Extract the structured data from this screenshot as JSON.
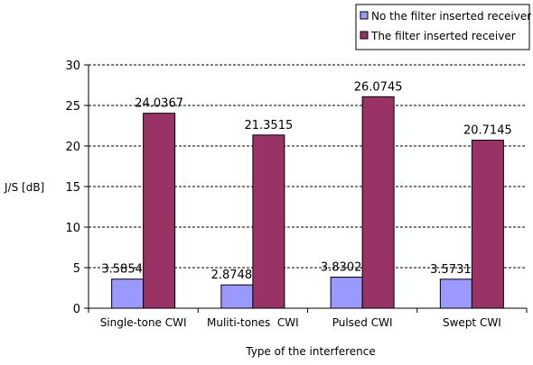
{
  "chart_data": {
    "type": "bar",
    "xlabel": "Type of the interference",
    "ylabel": "J/S [dB]",
    "ylim": [
      0,
      30
    ],
    "yticks": [
      0,
      5,
      10,
      15,
      20,
      25,
      30
    ],
    "categories": [
      "Single-tone CWI",
      "Muliti-tones  CWI",
      "Pulsed CWI",
      "Swept CWI"
    ],
    "series": [
      {
        "name": "No the filter inserted receiver",
        "values": [
          3.5854,
          2.8748,
          3.8302,
          3.5731
        ],
        "labels": [
          "3.5854",
          "2.8748",
          "3.8302",
          "3.5731"
        ],
        "color": "#9999FF"
      },
      {
        "name": "The filter inserted receiver",
        "values": [
          24.0367,
          21.3515,
          26.0745,
          20.7145
        ],
        "labels": [
          "24.0367",
          "21.3515",
          "26.0745",
          "20.7145"
        ],
        "color": "#993366"
      }
    ],
    "grid": "horizontal dashed",
    "legend": "top-right"
  }
}
